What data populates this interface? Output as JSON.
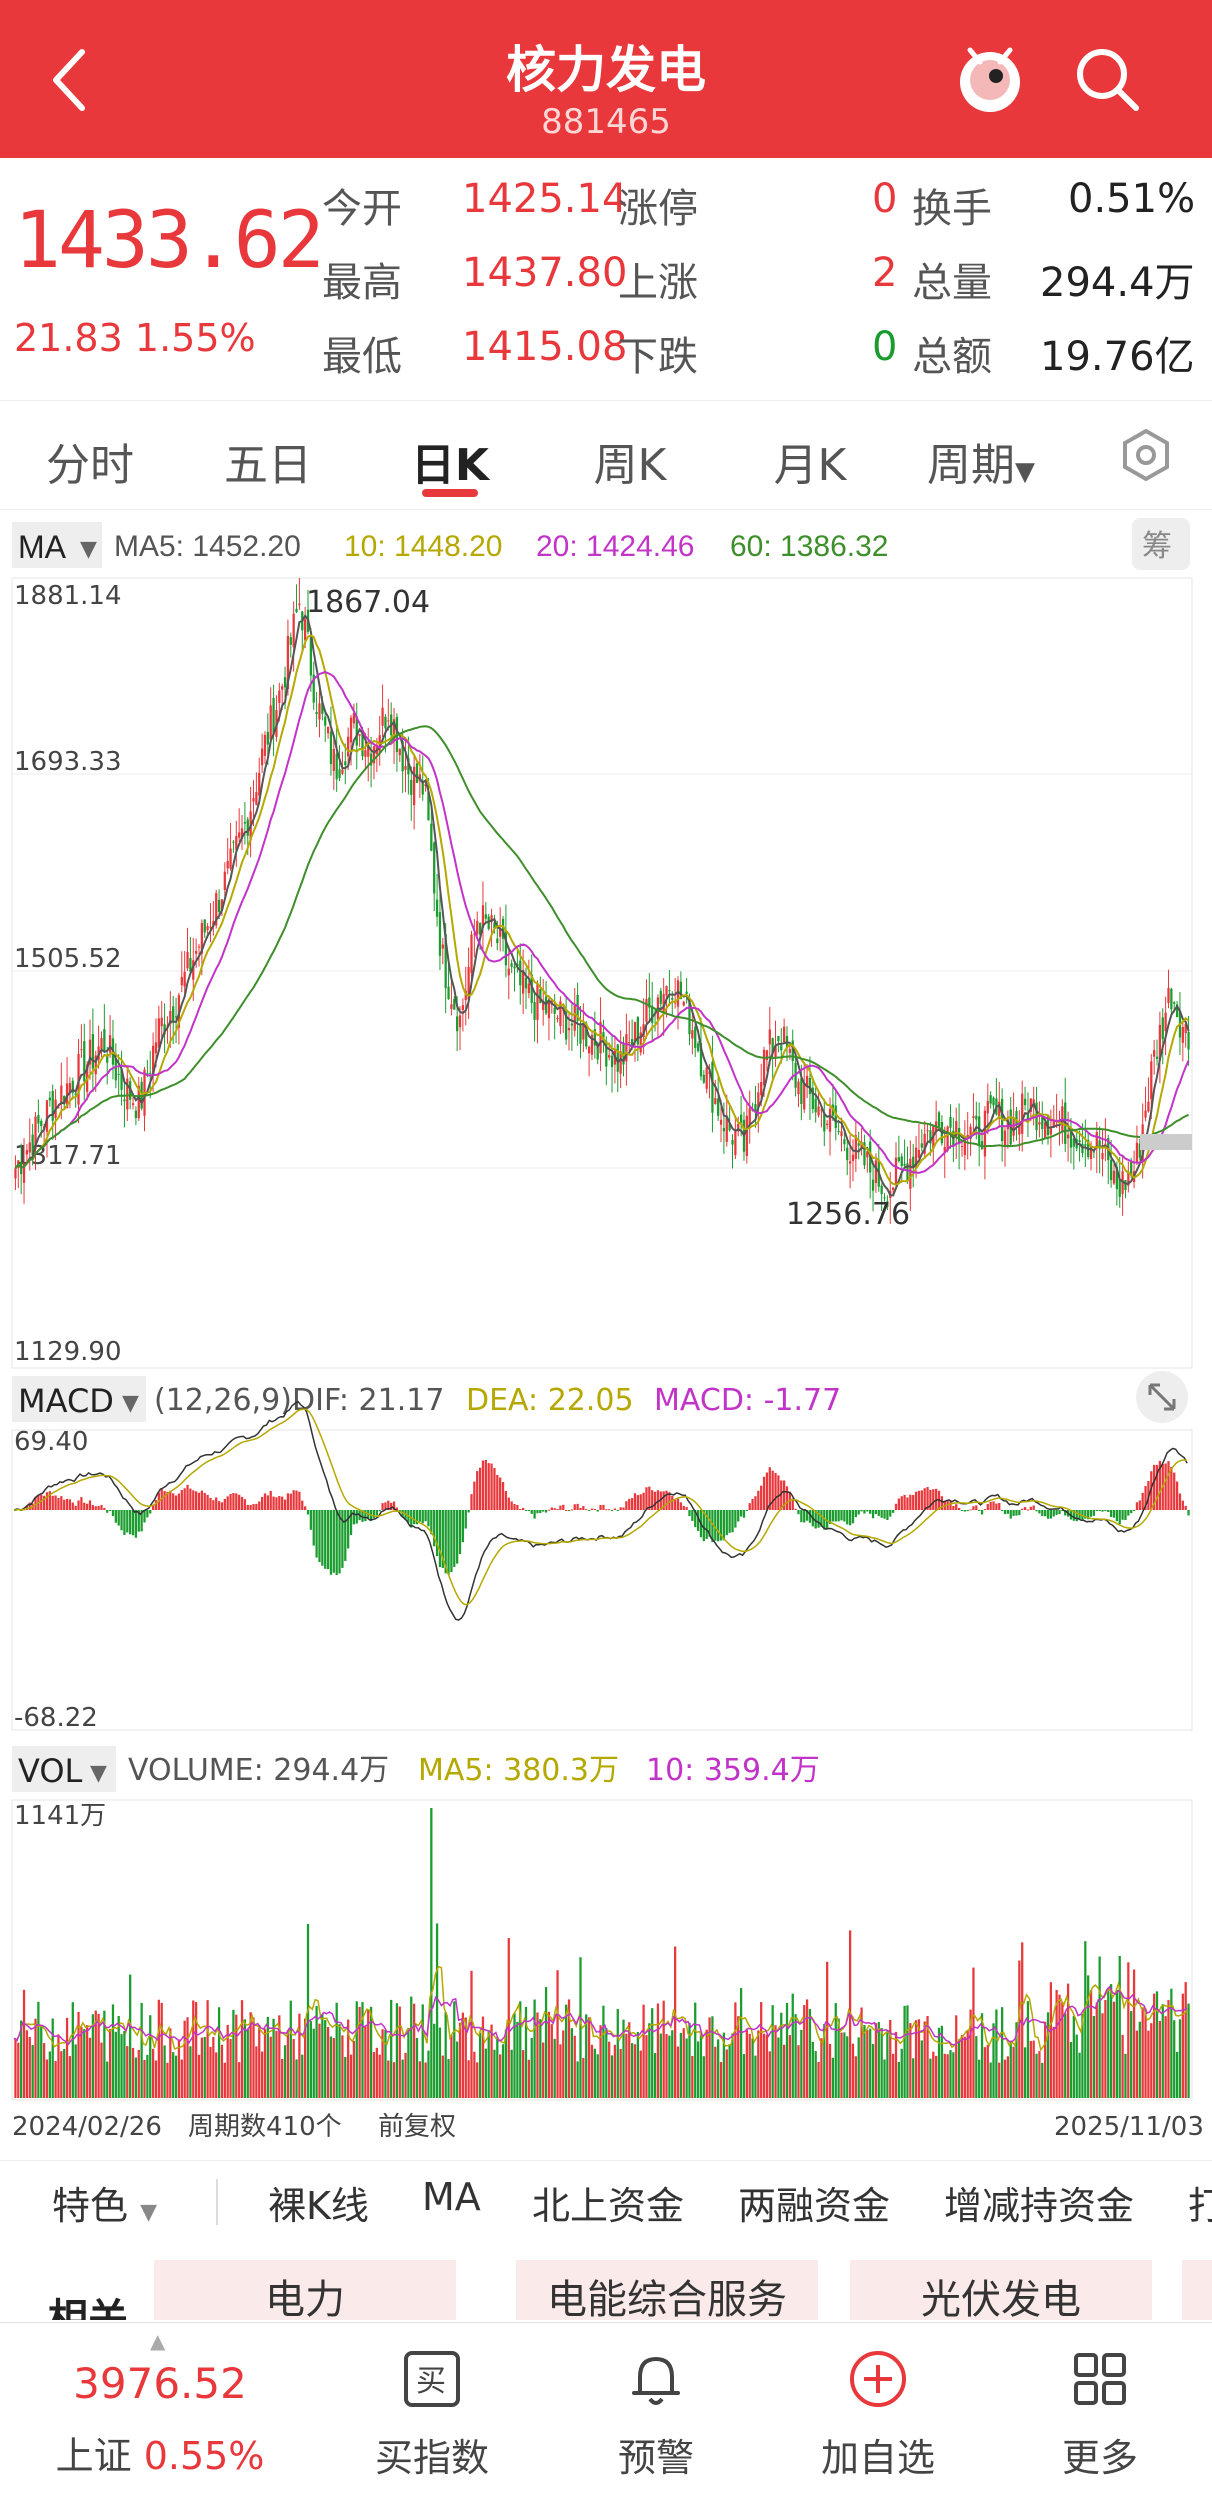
{
  "header": {
    "title": "核力发电",
    "code": "881465",
    "back_icon": "back-arrow-icon",
    "robot_icon": "robot-assistant-icon",
    "search_icon": "search-icon"
  },
  "quote": {
    "price": "1433.62",
    "change": "21.83",
    "change_pct": "1.55%",
    "rows": [
      {
        "l1": "今开",
        "v1": "1425.14",
        "l2": "涨停",
        "v2": "0",
        "l3": "换手",
        "v3": "0.51%"
      },
      {
        "l1": "最高",
        "v1": "1437.80",
        "l2": "上涨",
        "v2": "2",
        "l3": "总量",
        "v3": "294.4万"
      },
      {
        "l1": "最低",
        "v1": "1415.08",
        "l2": "下跌",
        "v2": "0",
        "l3": "总额",
        "v3": "19.76亿"
      }
    ]
  },
  "tabs": [
    "分时",
    "五日",
    "日K",
    "周K",
    "月K",
    "周期"
  ],
  "active_tab": "日K",
  "settings_icon": "hexagon-settings-icon",
  "ma_legend": {
    "selector": "MA",
    "ma5": "MA5: 1452.20",
    "ma10": "10: 1448.20",
    "ma20": "20: 1424.46",
    "ma60": "60: 1386.32",
    "chip_button": "筹"
  },
  "macd_legend": {
    "selector": "MACD",
    "params": "(12,26,9)",
    "dif": "DIF: 21.17",
    "dea": "DEA: 22.05",
    "macd": "MACD: -1.77"
  },
  "vol_legend": {
    "selector": "VOL",
    "volume": "VOLUME: 294.4万",
    "ma5": "MA5: 380.3万",
    "ma10": "10: 359.4万"
  },
  "axes": {
    "price_top": "1881.14",
    "price_2": "1693.33",
    "price_3": "1505.52",
    "price_4": "1317.71",
    "price_bottom": "1129.90",
    "high_mark": "1867.04",
    "low_mark": "1256.76",
    "macd_top": "69.40",
    "macd_bottom": "-68.22",
    "vol_top": "1141万",
    "date_start": "2024/02/26",
    "period_count": "周期数410个",
    "adjust": "前复权",
    "date_end": "2025/11/03"
  },
  "bottom_tabs": [
    "特色",
    "裸K线",
    "MA",
    "北上资金",
    "两融资金",
    "增减持资金",
    "打"
  ],
  "related": {
    "label": "相关",
    "items": [
      "电力",
      "电能综合服务",
      "光伏发电"
    ]
  },
  "footer": {
    "index_value": "3976.52",
    "index_name": "上证",
    "index_pct": "0.55%",
    "items": [
      {
        "label": "买指数",
        "icon": "buy-index-icon"
      },
      {
        "label": "预警",
        "icon": "bell-icon"
      },
      {
        "label": "加自选",
        "icon": "add-circle-icon"
      },
      {
        "label": "更多",
        "icon": "grid-more-icon"
      }
    ]
  },
  "colors": {
    "brand": "#e8383b",
    "up": "#e8383b",
    "down": "#1a9c2e",
    "ma5": "#555555",
    "ma10": "#b5a800",
    "ma20": "#c233c8",
    "ma60": "#3e8f2b"
  },
  "chart_data": {
    "type": "candlestick",
    "x_start": "2024/02/26",
    "x_end": "2025/11/03",
    "periods": 410,
    "ylim": [
      1129.9,
      1881.14
    ],
    "high": 1867.04,
    "low": 1256.76,
    "close_path": [
      1320,
      1350,
      1380,
      1400,
      1420,
      1440,
      1400,
      1380,
      1450,
      1480,
      1520,
      1560,
      1600,
      1650,
      1720,
      1780,
      1860,
      1760,
      1700,
      1740,
      1720,
      1760,
      1700,
      1680,
      1520,
      1460,
      1560,
      1540,
      1500,
      1480,
      1470,
      1460,
      1450,
      1440,
      1420,
      1450,
      1480,
      1500,
      1460,
      1400,
      1360,
      1340,
      1420,
      1450,
      1400,
      1380,
      1360,
      1340,
      1320,
      1300,
      1320,
      1350,
      1360,
      1360,
      1350,
      1370,
      1360,
      1380,
      1370,
      1360,
      1350,
      1340,
      1300,
      1320,
      1420,
      1490,
      1440
    ]
  }
}
